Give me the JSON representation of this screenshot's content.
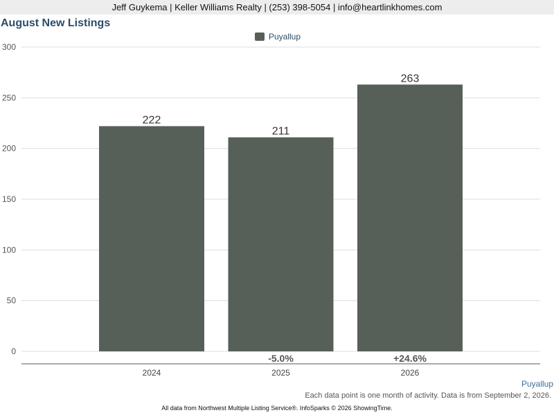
{
  "header": {
    "contact": "Jeff Guykema | Keller Williams Realty | (253) 398-5054 | info@heartlinkhomes.com"
  },
  "chart_data": {
    "type": "bar",
    "title": "August New Listings",
    "categories": [
      "2024",
      "2025",
      "2026"
    ],
    "series": [
      {
        "name": "Puyallup",
        "values": [
          222,
          211,
          263
        ],
        "color": "#566059"
      }
    ],
    "data_labels": [
      "222",
      "211",
      "263"
    ],
    "change_labels": [
      "",
      "-5.0%",
      "+24.6%"
    ],
    "ylim": [
      0,
      300
    ],
    "yticks": [
      0,
      50,
      100,
      150,
      200,
      250,
      300
    ],
    "grid": true,
    "legend_position": "top-center"
  },
  "region_label": "Puyallup",
  "note": "Each data point is one month of activity. Data is from September 2, 2026.",
  "footer": "All data from Northwest Multiple Listing Service®. InfoSparks © 2026 ShowingTime."
}
